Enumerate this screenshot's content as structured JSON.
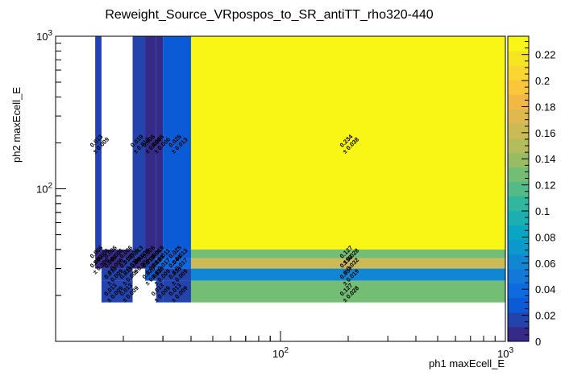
{
  "chart_data": {
    "type": "heatmap",
    "title": "Reweight_Source_VRpospos_to_SR_antiTT_rho320-440",
    "xlabel": "ph1 maxEcell_E",
    "ylabel": "ph2 maxEcell_E",
    "x_scale": "log",
    "y_scale": "log",
    "xlim": [
      10,
      1000
    ],
    "ylim": [
      10,
      1000
    ],
    "x_ticks": [
      {
        "value": 100,
        "label": "10^2"
      },
      {
        "value": 1000,
        "label": "10^3"
      }
    ],
    "y_ticks": [
      {
        "value": 100,
        "label": "10^2"
      },
      {
        "value": 1000,
        "label": "10^3"
      }
    ],
    "x_edges": [
      10,
      15,
      16,
      20,
      22,
      25,
      28,
      30,
      40,
      1000
    ],
    "y_edges": [
      10,
      15,
      18,
      25,
      30,
      35,
      40,
      1000
    ],
    "cells": [
      {
        "ix": 1,
        "iy": 6,
        "value": 0.013,
        "label": "0.013",
        "error": "± 0.009"
      },
      {
        "ix": 4,
        "iy": 6,
        "value": 0.019,
        "label": "0.019",
        "error": "± 0.013"
      },
      {
        "ix": 5,
        "iy": 6,
        "value": 0.006,
        "label": "0.006",
        "error": "± 0.006"
      },
      {
        "ix": 6,
        "iy": 6,
        "value": 0.006,
        "label": "0.006",
        "error": "± 0.006"
      },
      {
        "ix": 7,
        "iy": 6,
        "value": 0.025,
        "label": "0.025",
        "error": "± 0.013"
      },
      {
        "ix": 8,
        "iy": 6,
        "value": 0.234,
        "label": "0.234",
        "error": "± 0.038"
      },
      {
        "ix": 1,
        "iy": 5,
        "value": 0.006,
        "label": "0.006",
        "error": "± 0.006"
      },
      {
        "ix": 2,
        "iy": 5,
        "value": 0.006,
        "label": "0.006",
        "error": "± 0.006"
      },
      {
        "ix": 3,
        "iy": 5,
        "value": 0.006,
        "label": "0.006",
        "error": "± 0.006"
      },
      {
        "ix": 4,
        "iy": 5,
        "value": 0.013,
        "label": "0.013",
        "error": "± 0.009"
      },
      {
        "ix": 5,
        "iy": 5,
        "value": 0.006,
        "label": "0.006",
        "error": "± 0.006"
      },
      {
        "ix": 6,
        "iy": 5,
        "value": 0.019,
        "label": "0.019",
        "error": "± 0.011"
      },
      {
        "ix": 7,
        "iy": 5,
        "value": 0.025,
        "label": "0.025",
        "error": "± 0.013"
      },
      {
        "ix": 8,
        "iy": 5,
        "value": 0.127,
        "label": "0.127",
        "error": "± 0.028"
      },
      {
        "ix": 1,
        "iy": 4,
        "value": 0.006,
        "label": "0.006",
        "error": "± 0.006"
      },
      {
        "ix": 2,
        "iy": 4,
        "value": 0.006,
        "label": "0.006",
        "error": "± 0.006"
      },
      {
        "ix": 3,
        "iy": 4,
        "value": 0.019,
        "label": "0.019",
        "error": "± 0.011"
      },
      {
        "ix": 4,
        "iy": 4,
        "value": 0.006,
        "label": "0.006",
        "error": "± 0.006"
      },
      {
        "ix": 5,
        "iy": 4,
        "value": 0.019,
        "label": "0.019",
        "error": "± 0.011"
      },
      {
        "ix": 6,
        "iy": 4,
        "value": 0.044,
        "label": "0.044",
        "error": "± 0.017"
      },
      {
        "ix": 7,
        "iy": 4,
        "value": 0.044,
        "label": "0.044",
        "error": "± 0.017"
      },
      {
        "ix": 8,
        "iy": 4,
        "value": 0.158,
        "label": "0.158",
        "error": "± 0.032"
      },
      {
        "ix": 2,
        "iy": 3,
        "value": 0.013,
        "label": "0.013",
        "error": "± 0.009"
      },
      {
        "ix": 3,
        "iy": 3,
        "value": 0.013,
        "label": "0.013",
        "error": "± 0.009"
      },
      {
        "ix": 5,
        "iy": 3,
        "value": 0.025,
        "label": "0.025",
        "error": "± 0.013"
      },
      {
        "ix": 6,
        "iy": 3,
        "value": 0.013,
        "label": "0.013",
        "error": "± 0.009"
      },
      {
        "ix": 7,
        "iy": 3,
        "value": 0.013,
        "label": "0.013",
        "error": "± 0.009"
      },
      {
        "ix": 8,
        "iy": 3,
        "value": 0.057,
        "label": "0.057",
        "error": "± 0.019"
      },
      {
        "ix": 2,
        "iy": 2,
        "value": 0.013,
        "label": "0.013",
        "error": "± 0.009"
      },
      {
        "ix": 3,
        "iy": 2,
        "value": 0.013,
        "label": "0.013",
        "error": "± 0.009"
      },
      {
        "ix": 6,
        "iy": 2,
        "value": 0.013,
        "label": "0.013",
        "error": "± 0.009"
      },
      {
        "ix": 7,
        "iy": 2,
        "value": 0.013,
        "label": "0.013",
        "error": "± 0.009"
      },
      {
        "ix": 8,
        "iy": 2,
        "value": 0.127,
        "label": "0.127",
        "error": "± 0.028"
      }
    ],
    "colorbar": {
      "min": 0,
      "max": 0.234,
      "ticks": [
        "0",
        "0.02",
        "0.04",
        "0.06",
        "0.08",
        "0.1",
        "0.12",
        "0.14",
        "0.16",
        "0.18",
        "0.2",
        "0.22"
      ],
      "palette": [
        "#352a87",
        "#2343ad",
        "#0c5bd6",
        "#0f6ae0",
        "#1379d8",
        "#1187d4",
        "#0c98ca",
        "#08a6c3",
        "#1bafb1",
        "#30b79e",
        "#53ba88",
        "#74bd74",
        "#97bc63",
        "#b4bc5b",
        "#cbba56",
        "#dfb84f",
        "#f1b944",
        "#fbc63a",
        "#f9d72f",
        "#f6e622",
        "#f9f514"
      ]
    },
    "grid": false,
    "legend": "none"
  }
}
